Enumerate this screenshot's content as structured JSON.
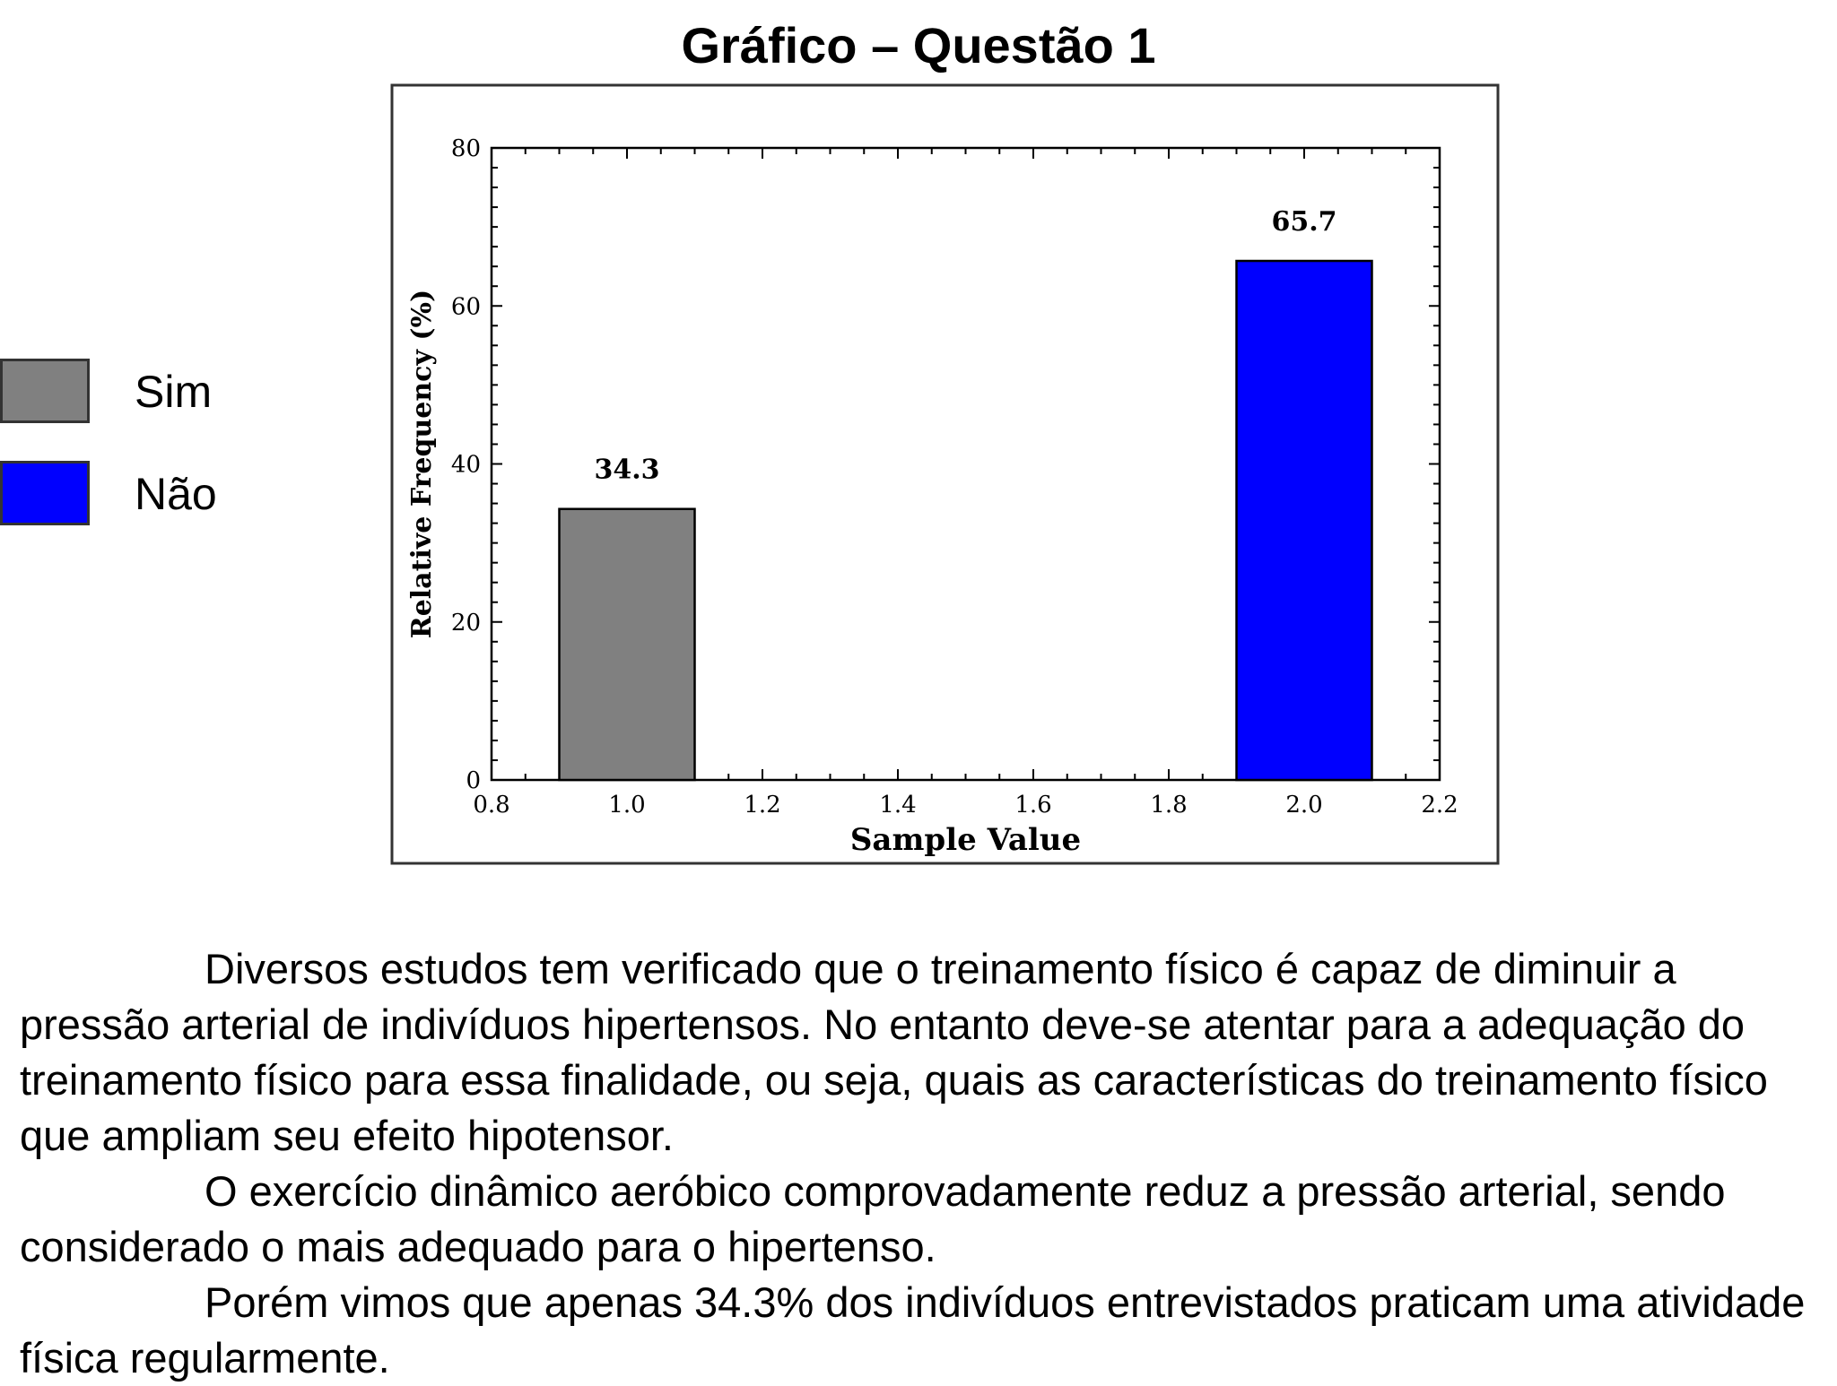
{
  "page": {
    "title": "Gráfico – Questão 1",
    "legend": [
      {
        "label": "Sim",
        "color": "#808080"
      },
      {
        "label": "Não",
        "color": "#0000ff"
      }
    ],
    "paragraphs": [
      "Diversos estudos tem verificado que o treinamento físico é capaz de diminuir a pressão arterial de indivíduos hipertensos. No entanto deve-se atentar para a adequação do treinamento físico para essa finalidade, ou seja, quais as características do treinamento físico que ampliam seu efeito hipotensor.",
      "O exercício dinâmico aeróbico comprovadamente reduz a pressão arterial, sendo considerado o mais adequado para o hipertenso.",
      "Porém vimos que apenas 34.3% dos indivíduos entrevistados praticam uma atividade física regularmente."
    ]
  },
  "chart_data": {
    "type": "bar",
    "xlabel": "Sample Value",
    "ylabel": "Relative Frequency (%)",
    "xlim": [
      0.8,
      2.2
    ],
    "ylim": [
      0,
      80
    ],
    "xticks": [
      "0.8",
      "1.0",
      "1.2",
      "1.4",
      "1.6",
      "1.8",
      "2.0",
      "2.2"
    ],
    "yticks": [
      "0",
      "20",
      "40",
      "60",
      "80"
    ],
    "bars": [
      {
        "x": 1.0,
        "value": 34.3,
        "label": "34.3",
        "color": "#808080"
      },
      {
        "x": 2.0,
        "value": 65.7,
        "label": "65.7",
        "color": "#0000ff"
      }
    ],
    "bar_width": 0.2,
    "grid": false
  }
}
